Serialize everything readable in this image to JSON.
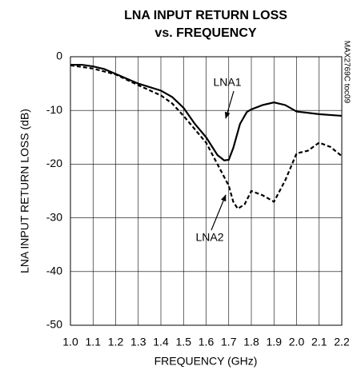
{
  "chart_data": {
    "type": "line",
    "title": [
      "LNA INPUT RETURN LOSS",
      "vs. FREQUENCY"
    ],
    "xlabel": "FREQUENCY (GHz)",
    "ylabel": "LNA INPUT RETURN LOSS (dB)",
    "side_note": "MAX2769C toc09",
    "xlim": [
      1.0,
      2.2
    ],
    "ylim": [
      -50,
      0
    ],
    "xticks": [
      {
        "value": 1.0,
        "label": "1.0"
      },
      1.1,
      1.2,
      1.3,
      1.4,
      1.5,
      1.6,
      1.7,
      1.8,
      1.9,
      {
        "value": 2.0,
        "label": "2.0"
      },
      2.1,
      2.2
    ],
    "yticks": [
      -50,
      -40,
      -30,
      -20,
      -10,
      0
    ],
    "grid": true,
    "series": [
      {
        "name": "LNA1",
        "color": "#000000",
        "dash": false,
        "x": [
          1.0,
          1.05,
          1.1,
          1.15,
          1.2,
          1.3,
          1.4,
          1.45,
          1.5,
          1.55,
          1.6,
          1.65,
          1.68,
          1.7,
          1.72,
          1.75,
          1.78,
          1.8,
          1.85,
          1.9,
          1.95,
          2.0,
          2.1,
          2.2
        ],
        "values": [
          -1.5,
          -1.5,
          -1.8,
          -2.3,
          -3.2,
          -5,
          -6.3,
          -7.5,
          -9.5,
          -12.5,
          -15,
          -18.3,
          -19.3,
          -19.2,
          -17,
          -12.5,
          -10.3,
          -9.8,
          -9,
          -8.5,
          -9,
          -10.2,
          -10.7,
          -11
        ]
      },
      {
        "name": "LNA2",
        "color": "#000000",
        "dash": true,
        "x": [
          1.0,
          1.1,
          1.2,
          1.3,
          1.4,
          1.45,
          1.5,
          1.55,
          1.6,
          1.65,
          1.7,
          1.72,
          1.74,
          1.77,
          1.8,
          1.85,
          1.9,
          1.95,
          2.0,
          2.05,
          2.1,
          2.15,
          2.2
        ],
        "values": [
          -1.6,
          -2.2,
          -3.3,
          -5.3,
          -7.2,
          -8.7,
          -11,
          -13.5,
          -16,
          -20,
          -24,
          -27,
          -28.3,
          -27.5,
          -25,
          -25.8,
          -27,
          -23,
          -18,
          -17.5,
          -16,
          -16.8,
          -18.5
        ]
      }
    ]
  }
}
